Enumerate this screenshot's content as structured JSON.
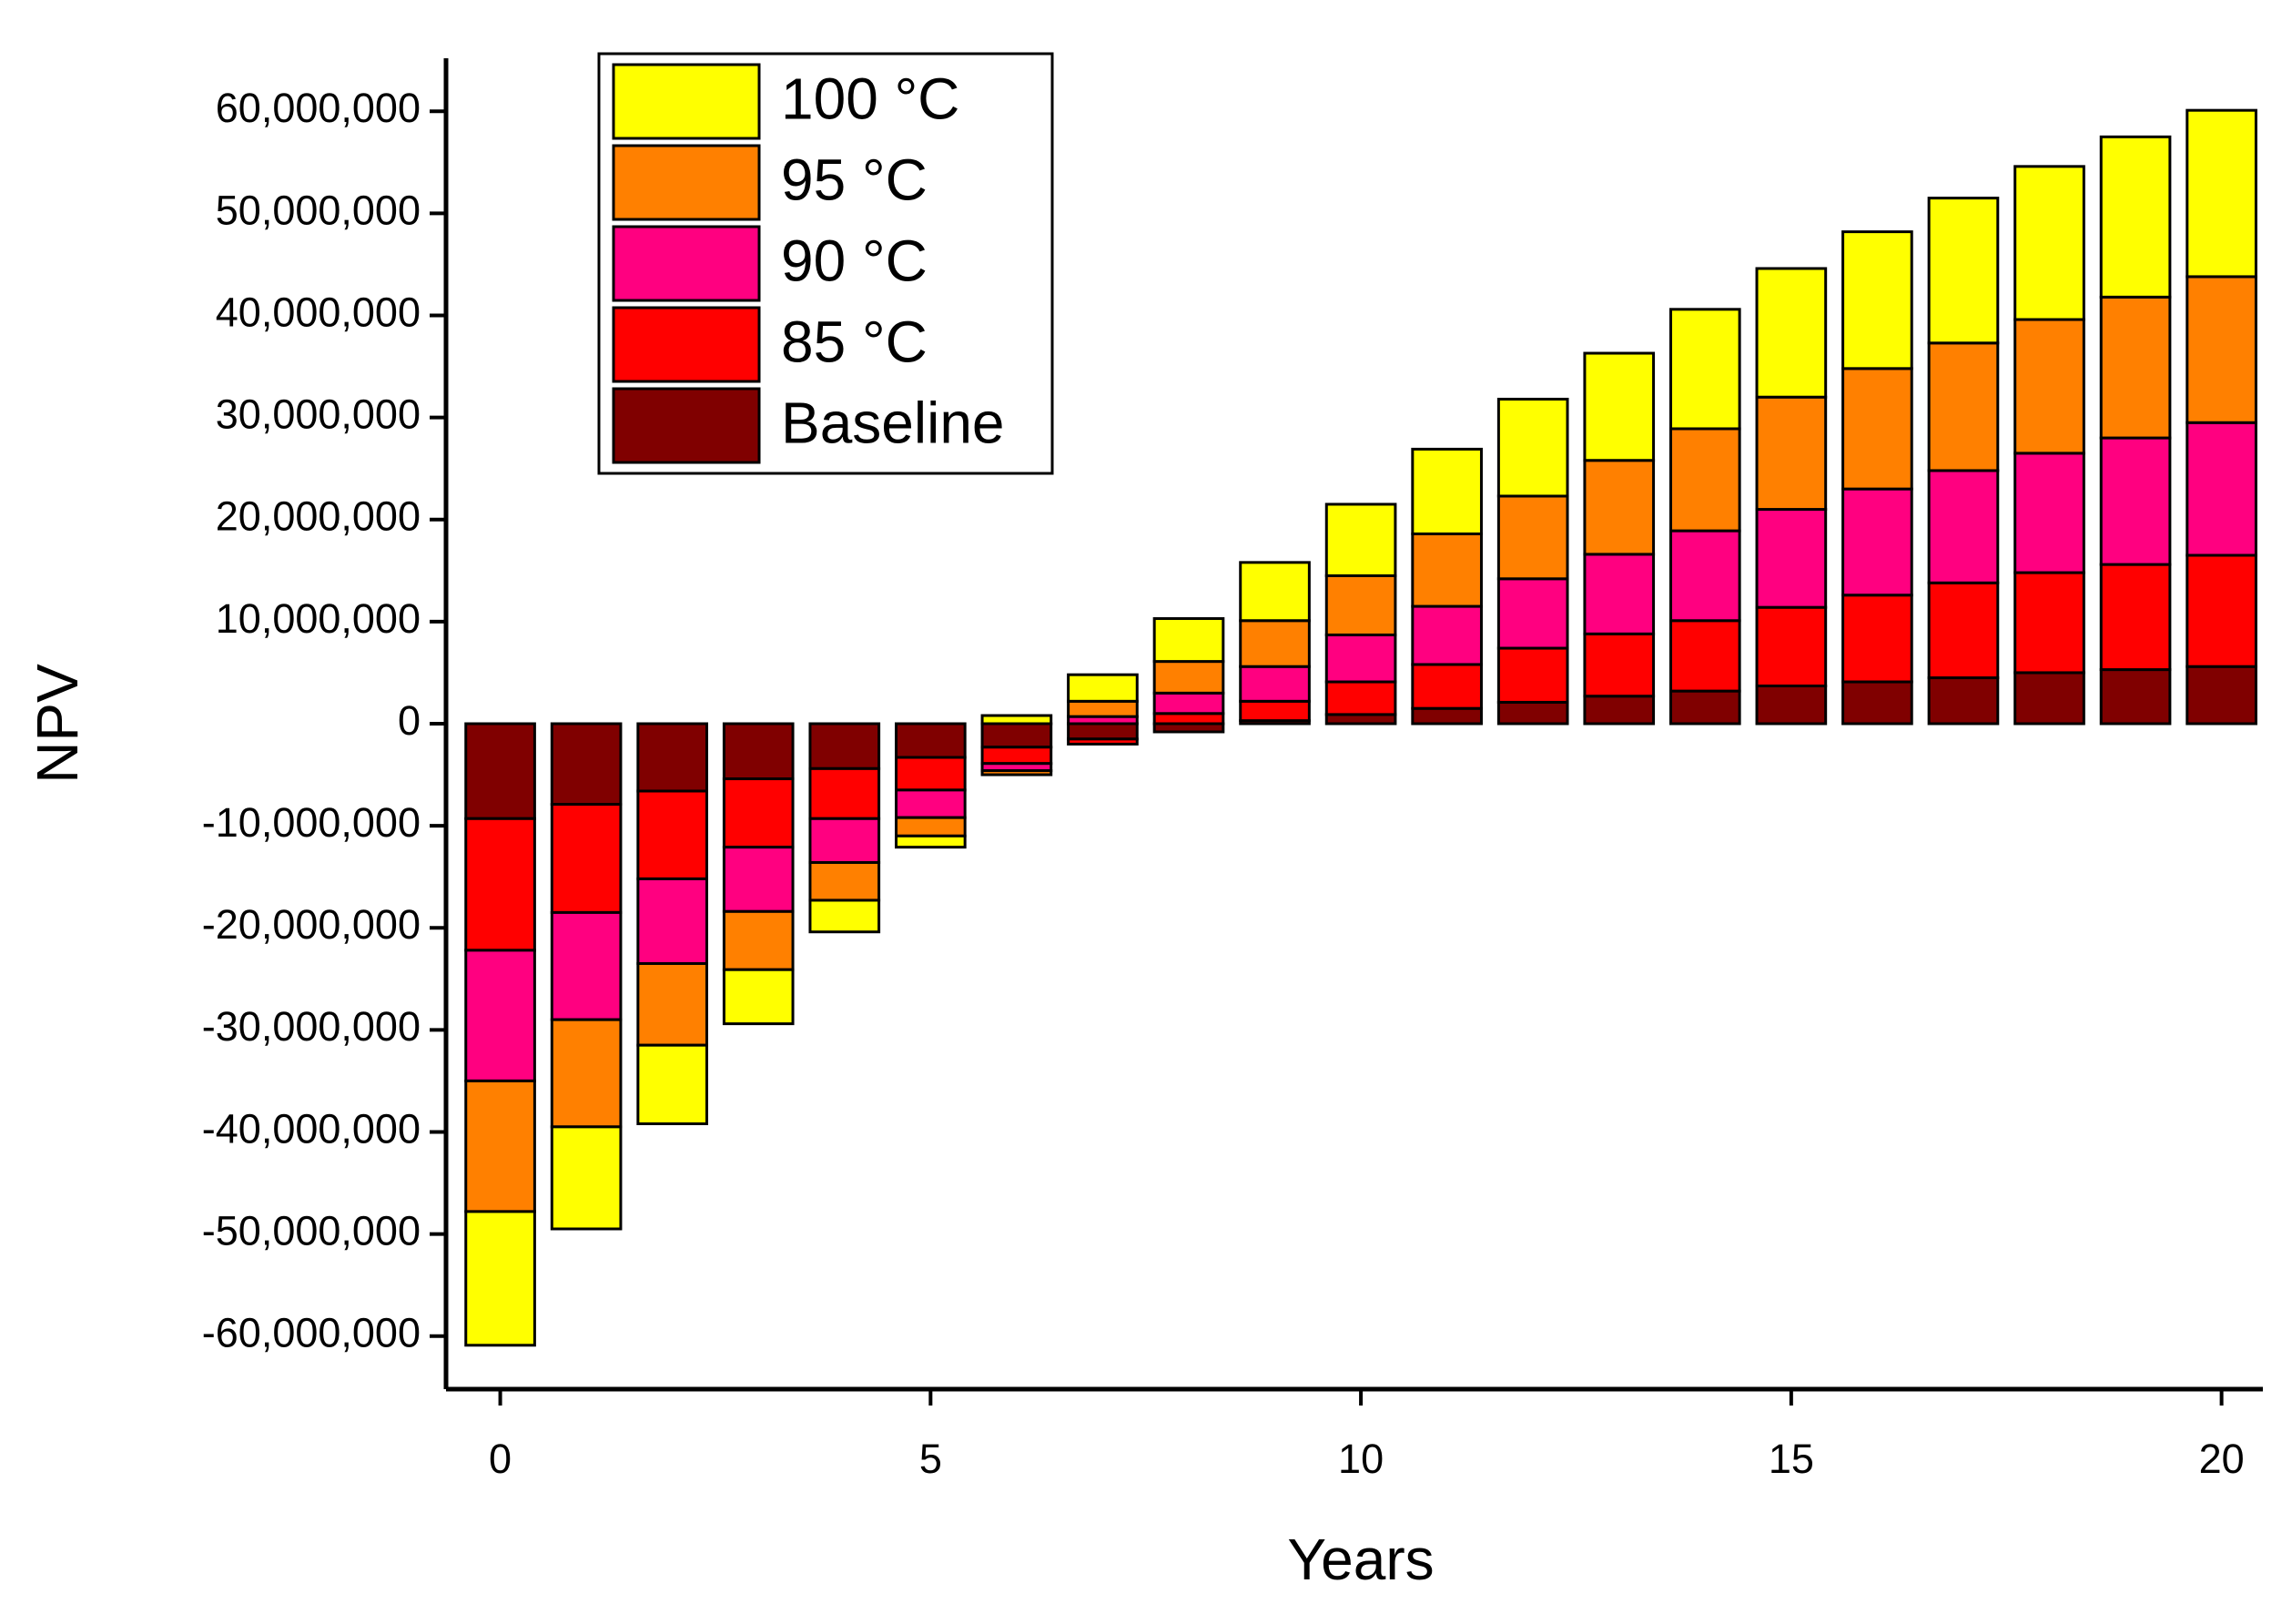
{
  "chart_data": {
    "type": "stacked_bar",
    "xlabel": "Years",
    "ylabel": "NPV",
    "x": [
      0,
      1,
      2,
      3,
      4,
      5,
      6,
      7,
      8,
      9,
      10,
      11,
      12,
      13,
      14,
      15,
      16,
      17,
      18,
      19,
      20
    ],
    "series": [
      {
        "name": "Baseline",
        "color": "#800000",
        "values": [
          -9300000,
          -7900000,
          -6600000,
          -5400000,
          -4400000,
          -3300000,
          -2300000,
          -1500000,
          -800000,
          300000,
          900000,
          1500000,
          2100000,
          2700000,
          3200000,
          3700000,
          4100000,
          4500000,
          5000000,
          5300000,
          5600000
        ]
      },
      {
        "name": "85 °C",
        "color": "#ff0000",
        "values": [
          -12900000,
          -10600000,
          -8600000,
          -6700000,
          -4900000,
          -3200000,
          -1600000,
          -500000,
          1000000,
          1900000,
          3200000,
          4300000,
          5300000,
          6100000,
          6900000,
          7700000,
          8500000,
          9300000,
          9800000,
          10300000,
          10900000
        ]
      },
      {
        "name": "90 °C",
        "color": "#ff0080",
        "values": [
          -12800000,
          -10500000,
          -8300000,
          -6300000,
          -4300000,
          -2700000,
          -700000,
          700000,
          2000000,
          3400000,
          4600000,
          5700000,
          6800000,
          7800000,
          8800000,
          9600000,
          10400000,
          11000000,
          11700000,
          12400000,
          13000000
        ]
      },
      {
        "name": "95 °C",
        "color": "#ff8000",
        "values": [
          -12800000,
          -10500000,
          -8000000,
          -5700000,
          -3700000,
          -1800000,
          -400000,
          1500000,
          3100000,
          4500000,
          5800000,
          7100000,
          8100000,
          9200000,
          10000000,
          11000000,
          11800000,
          12500000,
          13100000,
          13800000,
          14300000
        ]
      },
      {
        "name": "100 °C",
        "color": "#ffff00",
        "values": [
          -13100000,
          -10000000,
          -7700000,
          -5300000,
          -3100000,
          -1100000,
          800000,
          2600000,
          4200000,
          5700000,
          7000000,
          8300000,
          9500000,
          10500000,
          11700000,
          12600000,
          13400000,
          14200000,
          15000000,
          15700000,
          16300000
        ]
      }
    ],
    "xlim": [
      -0.63,
      20.48
    ],
    "ylim": [
      -65200000,
      65200000
    ],
    "xticks": [
      0,
      5,
      10,
      15,
      20
    ],
    "yticks": [
      {
        "value": -60000000,
        "label": "-60,000,000"
      },
      {
        "value": -50000000,
        "label": "-50,000,000"
      },
      {
        "value": -40000000,
        "label": "-40,000,000"
      },
      {
        "value": -30000000,
        "label": "-30,000,000"
      },
      {
        "value": -20000000,
        "label": "-20,000,000"
      },
      {
        "value": -10000000,
        "label": "-10,000,000"
      },
      0,
      {
        "value": 10000000,
        "label": "10,000,000"
      },
      {
        "value": 20000000,
        "label": "20,000,000"
      },
      {
        "value": 30000000,
        "label": "30,000,000"
      },
      {
        "value": 40000000,
        "label": "40,000,000"
      },
      {
        "value": 50000000,
        "label": "50,000,000"
      },
      {
        "value": 60000000,
        "label": "60,000,000"
      }
    ],
    "grid": false,
    "legend": "upper left"
  }
}
